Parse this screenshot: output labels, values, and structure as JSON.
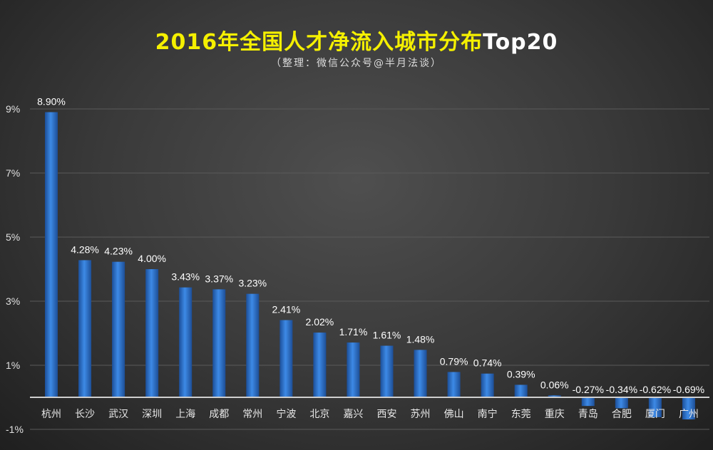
{
  "title": "2016年全国人才净流入城市分布",
  "title_suffix": "Top20",
  "subtitle": "（整理：微信公众号@半月法谈）",
  "colors": {
    "bar": "#2f7ad6",
    "title": "#f5f000",
    "background": "#3a3a3a"
  },
  "chart_data": {
    "type": "bar",
    "title": "2016年全国人才净流入城市分布Top20",
    "categories": [
      "杭州",
      "长沙",
      "武汉",
      "深圳",
      "上海",
      "成都",
      "常州",
      "宁波",
      "北京",
      "嘉兴",
      "西安",
      "苏州",
      "佛山",
      "南宁",
      "东莞",
      "重庆",
      "青岛",
      "合肥",
      "厦门",
      "广州"
    ],
    "values": [
      8.9,
      4.28,
      4.23,
      4.0,
      3.43,
      3.37,
      3.23,
      2.41,
      2.02,
      1.71,
      1.61,
      1.48,
      0.79,
      0.74,
      0.39,
      0.06,
      -0.27,
      -0.34,
      -0.62,
      -0.69
    ],
    "data_labels": [
      "8.90%",
      "4.28%",
      "4.23%",
      "4.00%",
      "3.43%",
      "3.37%",
      "3.23%",
      "2.41%",
      "2.02%",
      "1.71%",
      "1.61%",
      "1.48%",
      "0.79%",
      "0.74%",
      "0.39%",
      "0.06%",
      "-0.27%",
      "-0.34%",
      "-0.62%",
      "-0.69%"
    ],
    "yticks": [
      9,
      7,
      5,
      3,
      1,
      -1
    ],
    "ytick_labels": [
      "9%",
      "7%",
      "5%",
      "3%",
      "1%",
      "-1%"
    ],
    "ylim": [
      -1.5,
      9.5
    ],
    "grid": true,
    "xlabel": "",
    "ylabel": ""
  }
}
